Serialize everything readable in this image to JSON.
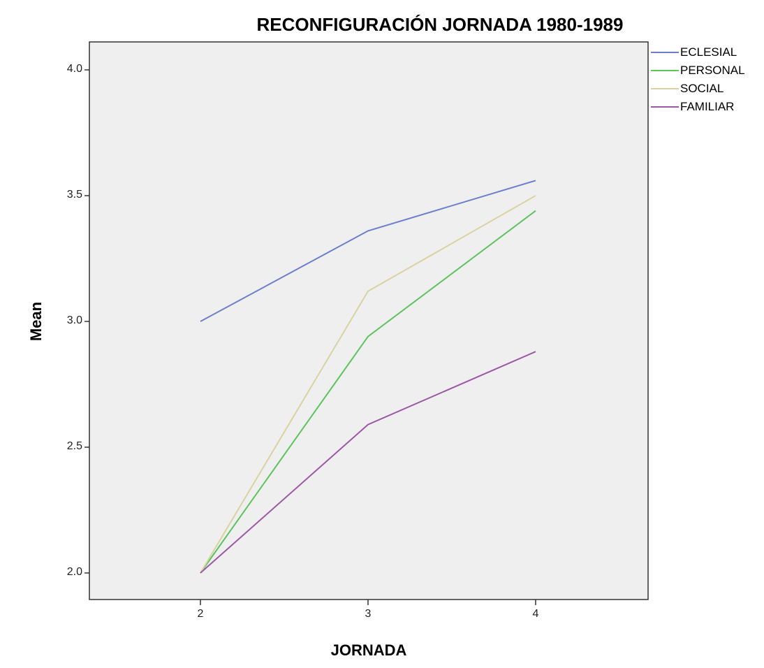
{
  "chart_data": {
    "type": "line",
    "title": "RECONFIGURACIÓN JORNADA 1980-1989",
    "xlabel": "JORNADA",
    "ylabel": "Mean",
    "categories": [
      "2",
      "3",
      "4"
    ],
    "x": [
      2,
      3,
      4
    ],
    "ylim": [
      1.9,
      4.1
    ],
    "yticks": [
      "2.0",
      "2.5",
      "3.0",
      "3.5",
      "4.0"
    ],
    "grid": false,
    "legend_position": "right-top",
    "series": [
      {
        "name": "ECLESIAL",
        "color": "#6b7fcc",
        "values": [
          3.0,
          3.36,
          3.56
        ]
      },
      {
        "name": "PERSONAL",
        "color": "#5cc45c",
        "values": [
          2.0,
          2.94,
          3.44
        ]
      },
      {
        "name": "SOCIAL",
        "color": "#d8d3a0",
        "values": [
          2.0,
          3.12,
          3.5
        ]
      },
      {
        "name": "FAMILIAR",
        "color": "#9c58a6",
        "values": [
          2.0,
          2.59,
          2.88
        ]
      }
    ],
    "plot_background": "#efefef"
  },
  "legend": {
    "items": [
      {
        "label": "ECLESIAL",
        "color": "#6b7fcc"
      },
      {
        "label": "PERSONAL",
        "color": "#5cc45c"
      },
      {
        "label": "SOCIAL",
        "color": "#d8d3a0"
      },
      {
        "label": "FAMILIAR",
        "color": "#9c58a6"
      }
    ]
  }
}
